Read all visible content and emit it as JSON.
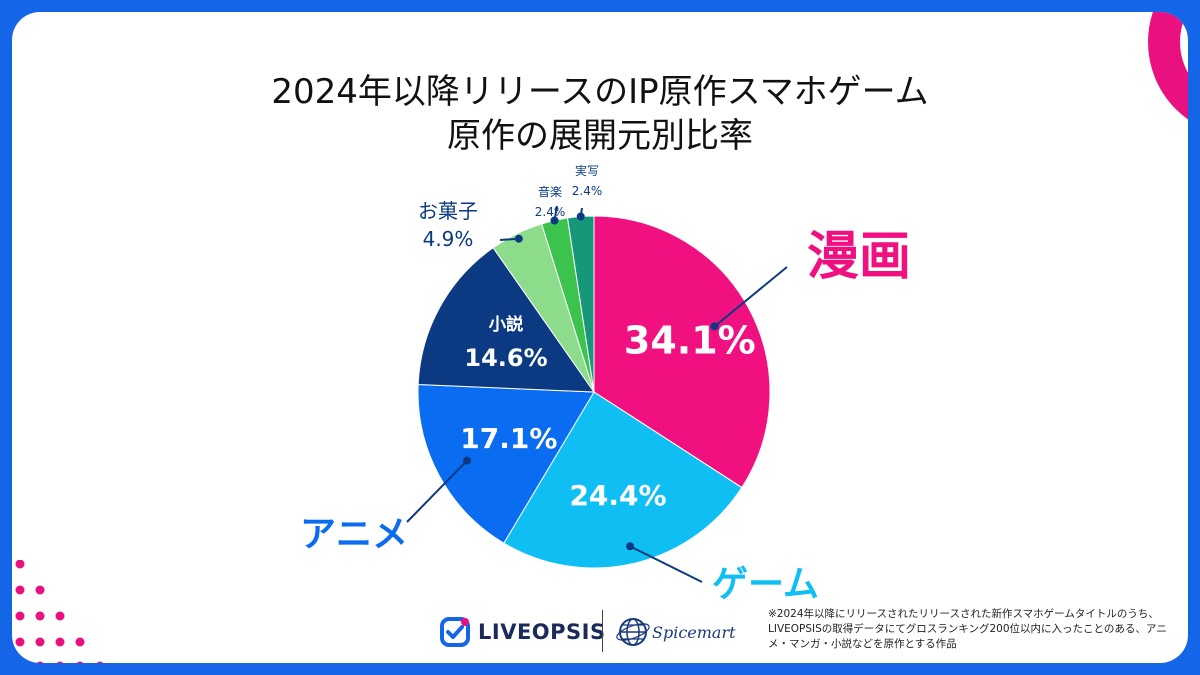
{
  "title_lines": [
    "2024年以降リリースのIP原作スマホゲーム",
    "原作の展開元別比率"
  ],
  "chart_data": {
    "type": "pie",
    "title": "2024年以降リリースのIP原作スマホゲーム 原作の展開元別比率",
    "start_angle_deg": 0,
    "direction": "clockwise",
    "slices": [
      {
        "label": "漫画",
        "value": 34.1,
        "display": "34.1%",
        "color": "#f0107f"
      },
      {
        "label": "ゲーム",
        "value": 24.4,
        "display": "24.4%",
        "color": "#0fbff4"
      },
      {
        "label": "アニメ",
        "value": 17.1,
        "display": "17.1%",
        "color": "#0a6cf0"
      },
      {
        "label": "小説",
        "value": 14.6,
        "display": "14.6%",
        "color": "#0b3a82"
      },
      {
        "label": "お菓子",
        "value": 4.9,
        "display": "4.9%",
        "color": "#8ddc8b"
      },
      {
        "label": "音楽",
        "value": 2.4,
        "display": "2.4%",
        "color": "#3cc34e"
      },
      {
        "label": "実写",
        "value": 2.4,
        "display": "2.4%",
        "color": "#16977a"
      }
    ]
  },
  "brand": {
    "liveopsis": "LIVEOPSIS",
    "spicemart": "Spicemart"
  },
  "footnote": "※2024年以降にリリースされたリリースされた新作スマホゲームタイトルのうち、LIVEOPSISの取得データにてグロスランキング200位以内に入ったことのある、アニメ・マンガ・小説などを原作とする作品",
  "icons": {
    "liveopsis_logo": "liveopsis-logo-icon",
    "spicemart_logo": "globe-icon"
  },
  "colors": {
    "frame": "#1565e8",
    "accent": "#e8117f",
    "label_blue": "#0b3a82"
  }
}
